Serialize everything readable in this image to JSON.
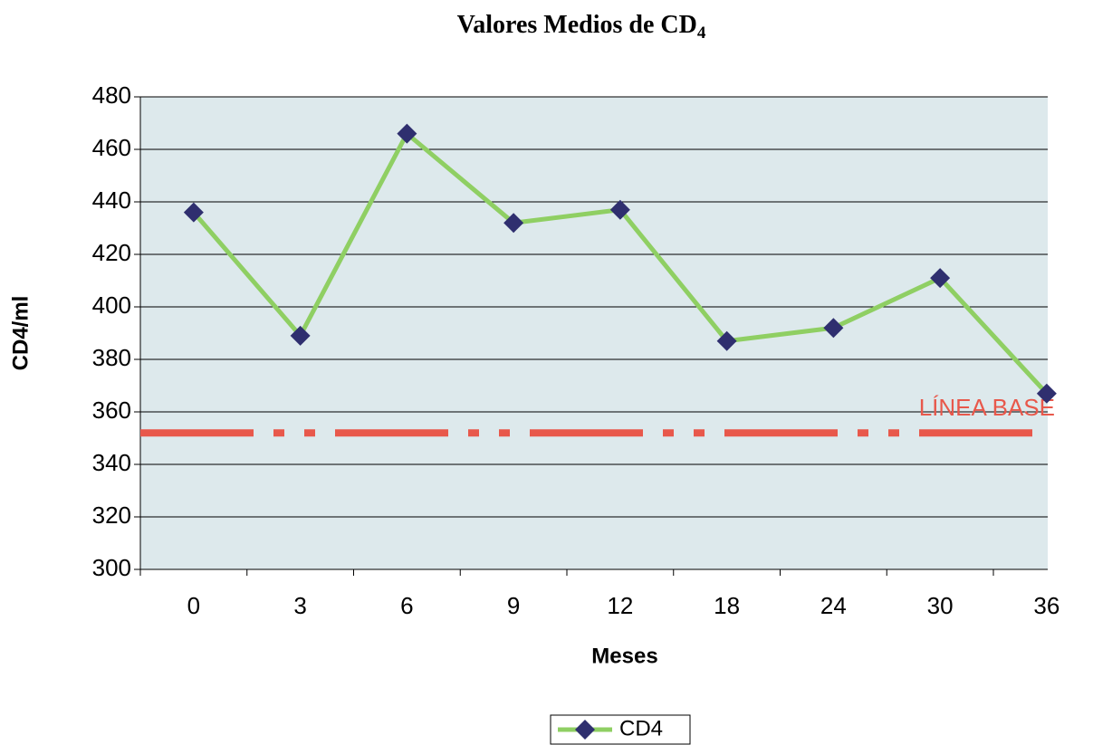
{
  "chart_data": {
    "type": "line",
    "title": "Valores Medios de CD",
    "title_subscript": "4",
    "x_label": "Meses",
    "y_label": "CD4/ml",
    "categories": [
      "0",
      "3",
      "6",
      "9",
      "12",
      "18",
      "24",
      "30",
      "36"
    ],
    "series": [
      {
        "name": "CD4",
        "color": "#8fcf63",
        "marker_color": "#2f2f6f",
        "values": [
          436,
          389,
          466,
          432,
          437,
          387,
          392,
          411,
          367
        ]
      }
    ],
    "reference_line": {
      "value": 352,
      "label": "LÍNEA BASE",
      "color": "#e8584b"
    },
    "ylim": [
      300,
      480
    ],
    "yticks": [
      300,
      320,
      340,
      360,
      380,
      400,
      420,
      440,
      460,
      480
    ],
    "grid": true,
    "legend": "bottom"
  }
}
